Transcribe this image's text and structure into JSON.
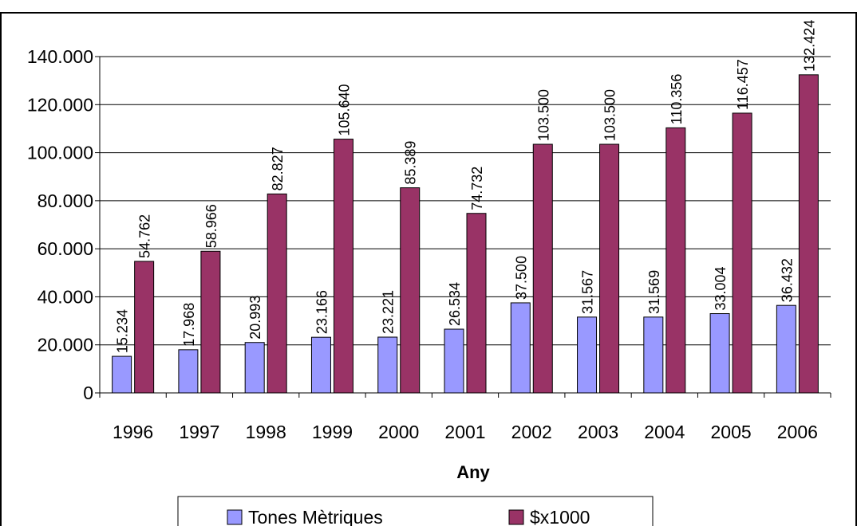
{
  "chart_data": {
    "type": "bar",
    "categories": [
      "1996",
      "1997",
      "1998",
      "1999",
      "2000",
      "2001",
      "2002",
      "2003",
      "2004",
      "2005",
      "2006"
    ],
    "series": [
      {
        "name": "Tones Mètriques",
        "color": "#9999ff",
        "values": [
          15234,
          17968,
          20993,
          23166,
          23221,
          26534,
          37500,
          31567,
          31569,
          33004,
          36432
        ],
        "labels": [
          "15.234",
          "17.968",
          "20.993",
          "23.166",
          "23.221",
          "26.534",
          "37.500",
          "31.567",
          "31.569",
          "33.004",
          "36.432"
        ]
      },
      {
        "name": "$x1000",
        "color": "#993366",
        "values": [
          54762,
          58966,
          82827,
          105640,
          85389,
          74732,
          103500,
          103500,
          110356,
          116457,
          132424
        ],
        "labels": [
          "54.762",
          "58.966",
          "82.827",
          "105.640",
          "85.389",
          "74.732",
          "103.500",
          "103.500",
          "110.356",
          "116.457",
          "132.424"
        ]
      }
    ],
    "ylim": [
      0,
      140000
    ],
    "yticks": [
      0,
      20000,
      40000,
      60000,
      80000,
      100000,
      120000,
      140000
    ],
    "ytick_labels": [
      "0",
      "20.000",
      "40.000",
      "60.000",
      "80.000",
      "100.000",
      "120.000",
      "140.000"
    ],
    "xlabel": "Any",
    "ylabel": "",
    "title": "",
    "grid": true,
    "legend_position": "bottom"
  }
}
